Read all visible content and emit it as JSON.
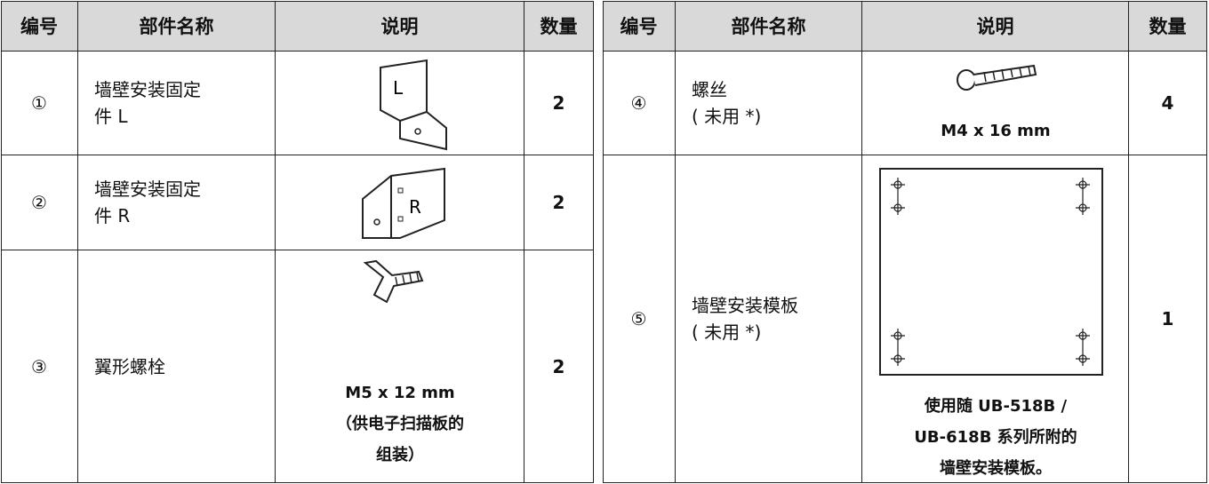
{
  "left_table": {
    "headers": [
      "编号",
      "部件名称",
      "说明",
      "数量"
    ],
    "rows": [
      {
        "number": "①",
        "name_lines": [
          "墙壁安装固定",
          "件 L"
        ],
        "icon_label": "L",
        "quantity": 2
      },
      {
        "number": "②",
        "name_lines": [
          "墙壁安装固定",
          "件 R"
        ],
        "icon_label": "R",
        "quantity": 2
      },
      {
        "number": "③",
        "name_lines": [
          "翼形螺栓"
        ],
        "caption_lines": [
          "M5 x 12 mm",
          "（供电子扫描板的",
          "组装）"
        ],
        "quantity": 2
      }
    ]
  },
  "right_table": {
    "headers": [
      "编号",
      "部件名称",
      "说明",
      "数量"
    ],
    "rows": [
      {
        "number": "④",
        "name_lines": [
          "螺丝",
          "( 未用 *)"
        ],
        "caption_lines": [
          "M4 x 16 mm"
        ],
        "quantity": 4
      },
      {
        "number": "⑤",
        "name_lines": [
          "墙壁安装模板",
          "( 未用 *)"
        ],
        "caption_lines": [
          "使用随 UB-518B /",
          "UB-618B 系列所附的",
          "墙壁安装模板。"
        ],
        "quantity": 1
      }
    ]
  }
}
